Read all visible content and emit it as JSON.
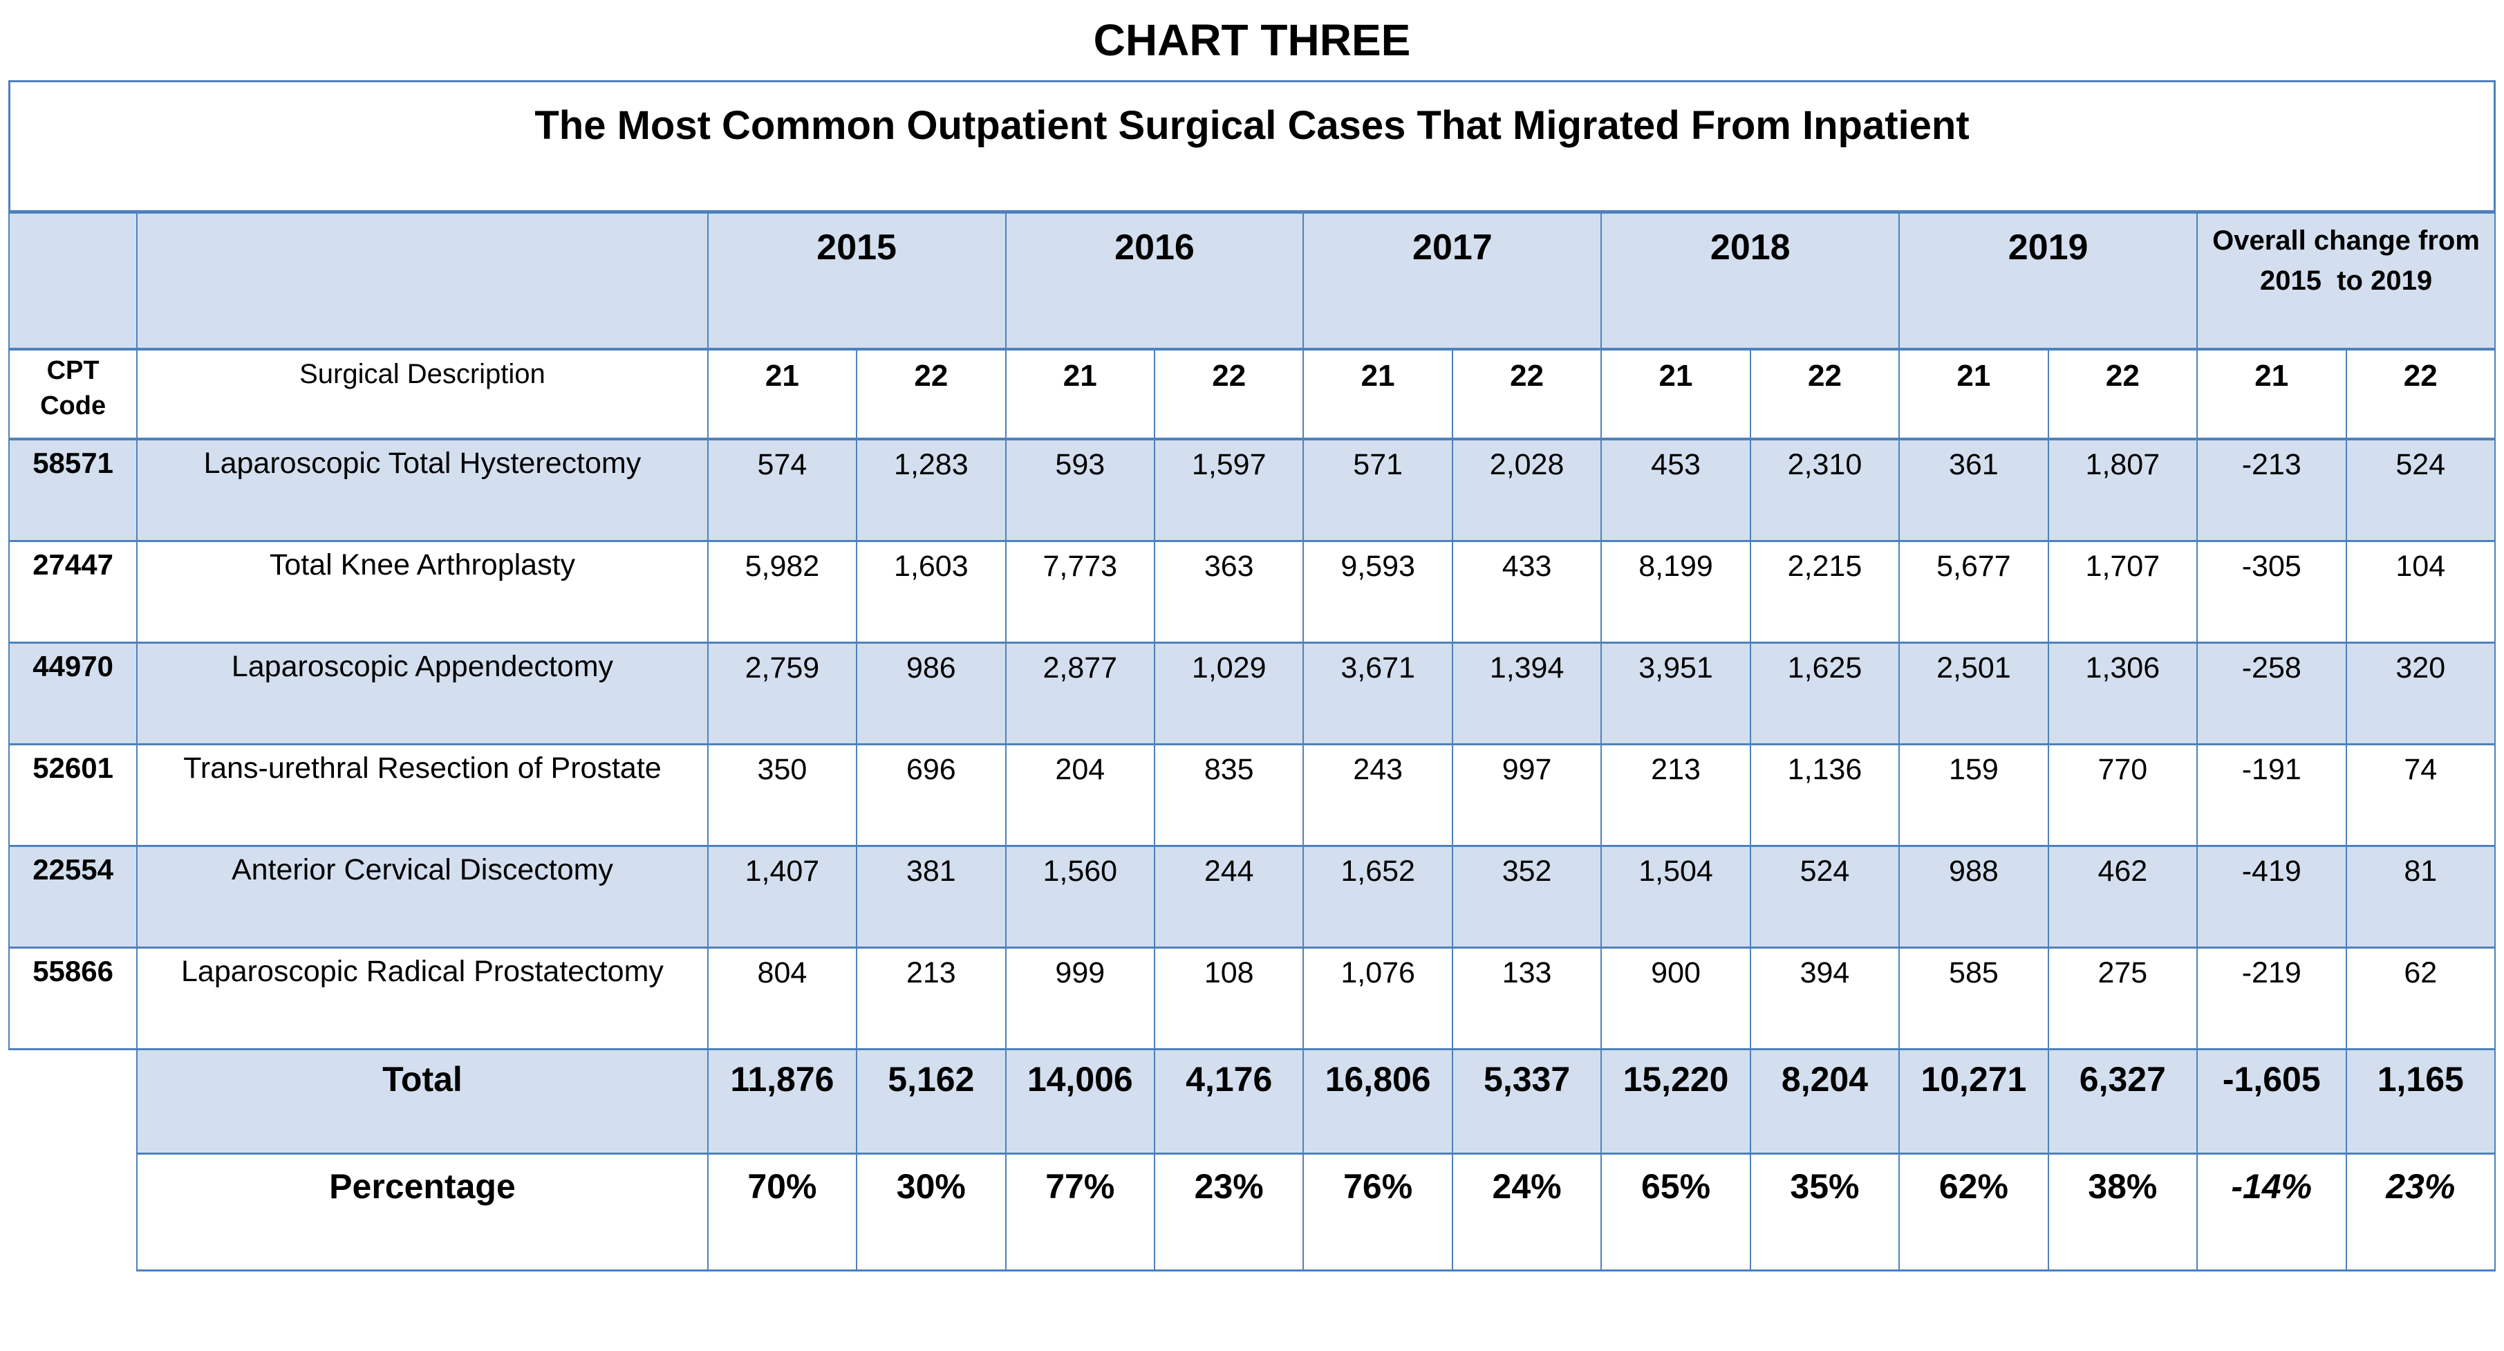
{
  "colors": {
    "border_blue": "#4e81bd",
    "header_fill": "#d3dfee",
    "text": "#000000",
    "background": "#ffffff"
  },
  "chart_data": {
    "type": "table",
    "title": "CHART THREE",
    "subtitle": "The Most Common Outpatient Surgical Cases That Migrated From Inpatient",
    "column_group_headers": [
      "2015",
      "2016",
      "2017",
      "2018",
      "2019"
    ],
    "overall_change_header": "Overall change from 2015  to 2019",
    "cpt_code_header": "CPT Code",
    "description_header": "Surgical Description",
    "place_of_service_codes": [
      "21",
      "22"
    ],
    "rows": [
      {
        "cpt_code": "58571",
        "description": "Laparoscopic Total Hysterectomy",
        "values": [
          "574",
          "1,283",
          "593",
          "1,597",
          "571",
          "2,028",
          "453",
          "2,310",
          "361",
          "1,807",
          "-213",
          "524"
        ]
      },
      {
        "cpt_code": "27447",
        "description": "Total Knee Arthroplasty",
        "values": [
          "5,982",
          "1,603",
          "7,773",
          "363",
          "9,593",
          "433",
          "8,199",
          "2,215",
          "5,677",
          "1,707",
          "-305",
          "104"
        ]
      },
      {
        "cpt_code": "44970",
        "description": "Laparoscopic Appendectomy",
        "values": [
          "2,759",
          "986",
          "2,877",
          "1,029",
          "3,671",
          "1,394",
          "3,951",
          "1,625",
          "2,501",
          "1,306",
          "-258",
          "320"
        ]
      },
      {
        "cpt_code": "52601",
        "description": "Trans-urethral Resection of Prostate",
        "values": [
          "350",
          "696",
          "204",
          "835",
          "243",
          "997",
          "213",
          "1,136",
          "159",
          "770",
          "-191",
          "74"
        ]
      },
      {
        "cpt_code": "22554",
        "description": "Anterior Cervical Discectomy",
        "values": [
          "1,407",
          "381",
          "1,560",
          "244",
          "1,652",
          "352",
          "1,504",
          "524",
          "988",
          "462",
          "-419",
          "81"
        ]
      },
      {
        "cpt_code": "55866",
        "description": "Laparoscopic Radical Prostatectomy",
        "values": [
          "804",
          "213",
          "999",
          "108",
          "1,076",
          "133",
          "900",
          "394",
          "585",
          "275",
          "-219",
          "62"
        ]
      }
    ],
    "total_row": {
      "label": "Total",
      "values": [
        "11,876",
        "5,162",
        "14,006",
        "4,176",
        "16,806",
        "5,337",
        "15,220",
        "8,204",
        "10,271",
        "6,327",
        "-1,605",
        "1,165"
      ]
    },
    "percentage_row": {
      "label": "Percentage",
      "values": [
        "70%",
        "30%",
        "77%",
        "23%",
        "76%",
        "24%",
        "65%",
        "35%",
        "62%",
        "38%",
        "-14%",
        "23%"
      ]
    }
  }
}
